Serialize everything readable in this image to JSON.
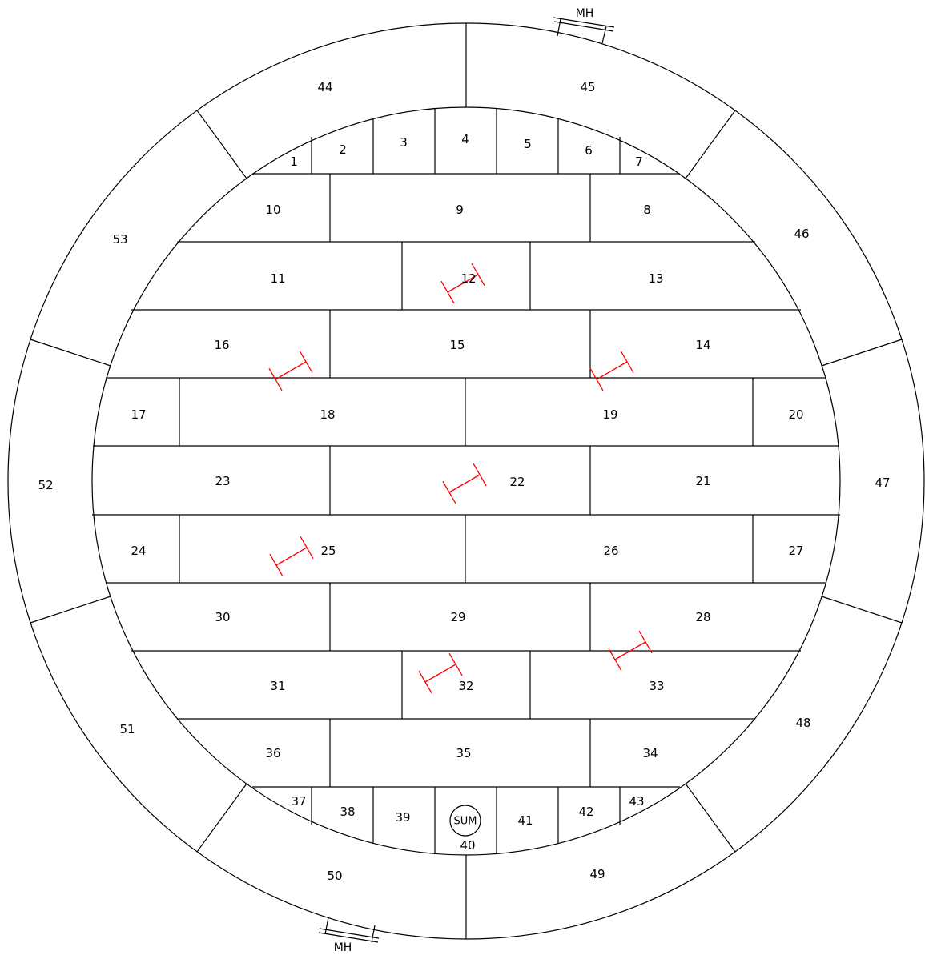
{
  "manhole_label": "MH",
  "sump_label": "SUM",
  "panels": {
    "p1": "1",
    "p2": "2",
    "p3": "3",
    "p4": "4",
    "p5": "5",
    "p6": "6",
    "p7": "7",
    "p8": "8",
    "p9": "9",
    "p10": "10",
    "p11": "11",
    "p12": "12",
    "p13": "13",
    "p14": "14",
    "p15": "15",
    "p16": "16",
    "p17": "17",
    "p18": "18",
    "p19": "19",
    "p20": "20",
    "p21": "21",
    "p22": "22",
    "p23": "23",
    "p24": "24",
    "p25": "25",
    "p26": "26",
    "p27": "27",
    "p28": "28",
    "p29": "29",
    "p30": "30",
    "p31": "31",
    "p32": "32",
    "p33": "33",
    "p34": "34",
    "p35": "35",
    "p36": "36",
    "p37": "37",
    "p38": "38",
    "p39": "39",
    "p40": "40",
    "p41": "41",
    "p42": "42",
    "p43": "43"
  },
  "annular_segments": {
    "a44": "44",
    "a45": "45",
    "a46": "46",
    "a47": "47",
    "a48": "48",
    "a49": "49",
    "a50": "50",
    "a51": "51",
    "a52": "52",
    "a53": "53"
  },
  "colors": {
    "line": "#000000",
    "beam_marker": "#ff0000",
    "background": "#ffffff"
  }
}
